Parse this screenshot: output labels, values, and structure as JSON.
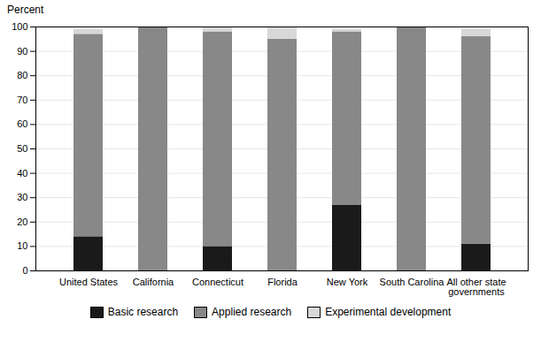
{
  "chart_data": {
    "type": "bar",
    "stacked": true,
    "ylabel": "Percent",
    "categories": [
      "United States",
      "California",
      "Connecticut",
      "Florida",
      "New York",
      "South Carolina",
      "All other state\ngovernments"
    ],
    "series": [
      {
        "name": "Basic research",
        "color": "#1a1a1a",
        "values": [
          14,
          0,
          10,
          0,
          27,
          0,
          11
        ]
      },
      {
        "name": "Applied research",
        "color": "#888888",
        "values": [
          83,
          100,
          88,
          95,
          71,
          100,
          85
        ]
      },
      {
        "name": "Experimental development",
        "color": "#d8d8d8",
        "values": [
          2,
          0,
          2,
          5,
          1,
          0,
          3
        ]
      }
    ],
    "ylim": [
      0,
      100
    ],
    "yticks": [
      0,
      10,
      20,
      30,
      40,
      50,
      60,
      70,
      80,
      90,
      100
    ],
    "grid": true,
    "legend": "bottom"
  }
}
